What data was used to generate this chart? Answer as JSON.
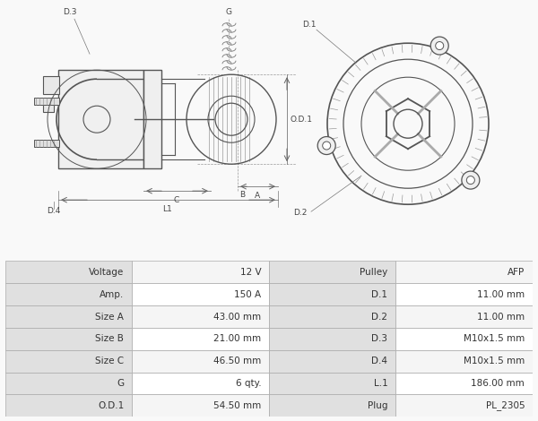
{
  "bg_color": "#ffffff",
  "border_color": "#cccccc",
  "table_header_bg": "#e0e0e0",
  "table_row_bg1": "#f5f5f5",
  "table_row_bg2": "#ffffff",
  "table_border": "#aaaaaa",
  "drawing_line_color": "#555555",
  "label_color": "#444444",
  "table_data": [
    [
      "Voltage",
      "12 V",
      "Pulley",
      "AFP"
    ],
    [
      "Amp.",
      "150 A",
      "D.1",
      "11.00 mm"
    ],
    [
      "Size A",
      "43.00 mm",
      "D.2",
      "11.00 mm"
    ],
    [
      "Size B",
      "21.00 mm",
      "D.3",
      "M10x1.5 mm"
    ],
    [
      "Size C",
      "46.50 mm",
      "D.4",
      "M10x1.5 mm"
    ],
    [
      "G",
      "6 qty.",
      "L.1",
      "186.00 mm"
    ],
    [
      "O.D.1",
      "54.50 mm",
      "Plug",
      "PL_2305"
    ]
  ],
  "fig_bg": "#f9f9f9",
  "label_fontsize": 6.5,
  "table_fontsize": 7.5
}
